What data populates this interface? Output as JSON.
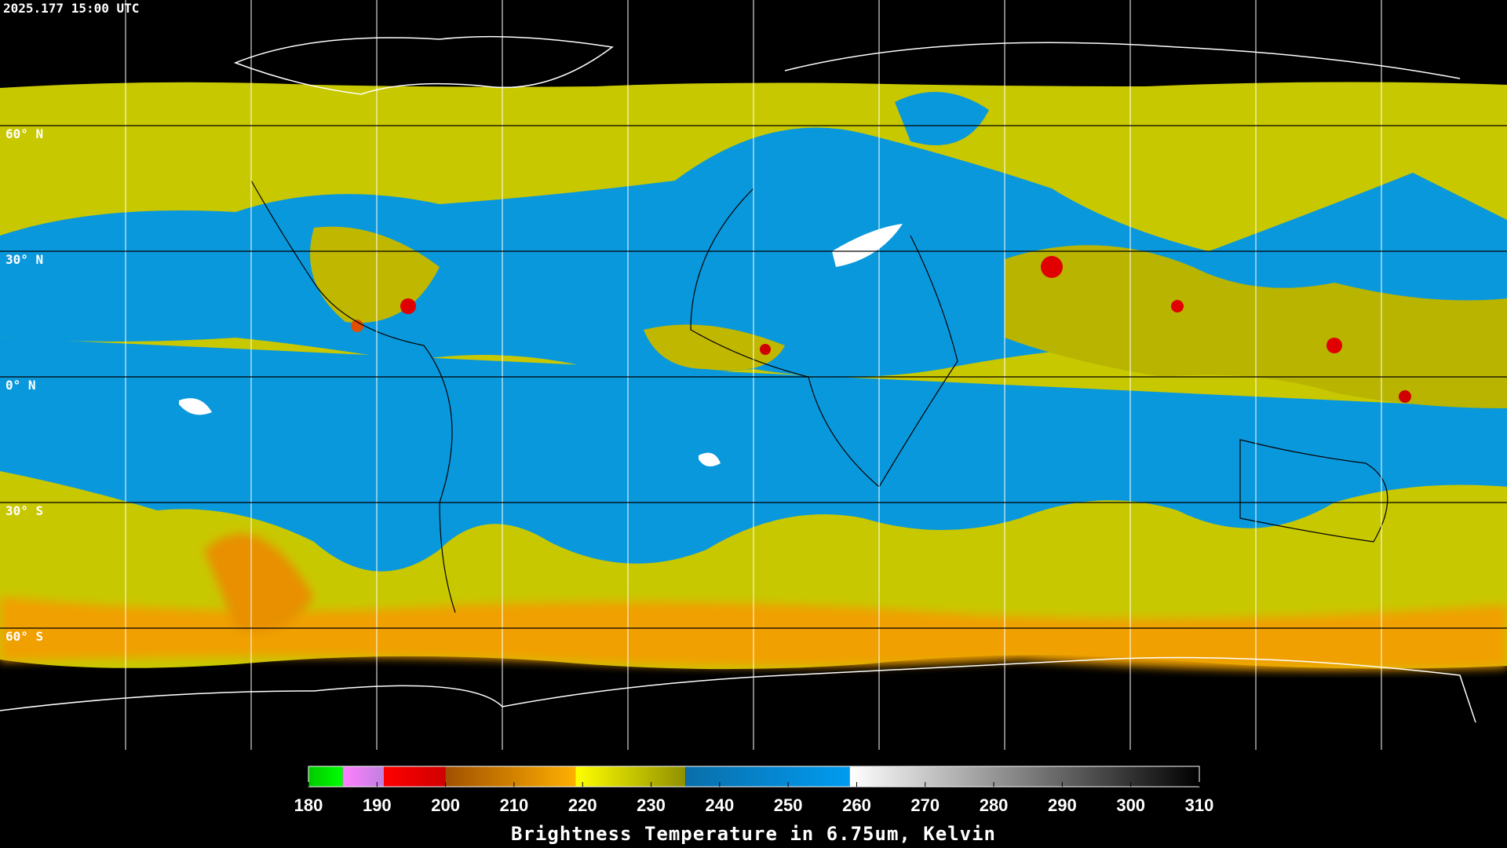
{
  "header": {
    "timestamp": "2025.177 15:00 UTC"
  },
  "map": {
    "latlim": [
      -90,
      90
    ],
    "lat_labels": [
      {
        "value": 60,
        "label": "60° N"
      },
      {
        "value": 30,
        "label": "30° N"
      },
      {
        "value": 0,
        "label": "0° N"
      },
      {
        "value": -30,
        "label": "30° S"
      },
      {
        "value": -60,
        "label": "60° S"
      }
    ]
  },
  "colorbar": {
    "range": [
      180,
      310
    ],
    "ticks": [
      180,
      190,
      200,
      210,
      220,
      230,
      240,
      250,
      260,
      270,
      280,
      290,
      300,
      310
    ],
    "segments": [
      {
        "from": 180,
        "to": 185,
        "colors": [
          "#00c800",
          "#00ff00"
        ]
      },
      {
        "from": 185,
        "to": 191,
        "colors": [
          "#ff80ff",
          "#c080e0"
        ]
      },
      {
        "from": 191,
        "to": 200,
        "colors": [
          "#ff0000",
          "#d00000"
        ]
      },
      {
        "from": 200,
        "to": 219,
        "colors": [
          "#a05000",
          "#ffb000"
        ]
      },
      {
        "from": 219,
        "to": 235,
        "colors": [
          "#ffff00",
          "#909000"
        ]
      },
      {
        "from": 235,
        "to": 259,
        "colors": [
          "#0a6eaa",
          "#009cf0"
        ]
      },
      {
        "from": 259,
        "to": 310,
        "colors": [
          "#ffffff",
          "#000000"
        ]
      }
    ],
    "title": "Brightness Temperature in 6.75um, Kelvin"
  }
}
